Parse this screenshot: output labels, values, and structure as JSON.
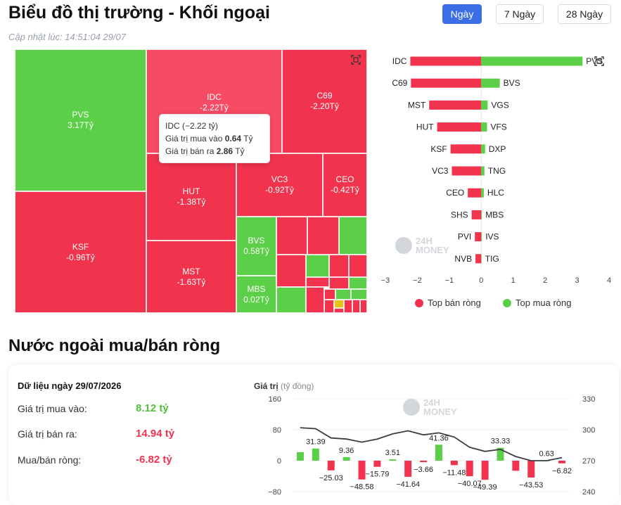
{
  "header": {
    "title": "Biểu đồ thị trường - Khối ngoại",
    "updated": "Cập nhật lúc: 14:51:04 29/07",
    "timeframes": [
      "Ngày",
      "7 Ngày",
      "28 Ngày"
    ],
    "active_timeframe": "Ngày"
  },
  "treemap": {
    "tiles": [
      {
        "code": "PVS",
        "value": "3.17Tỷ",
        "color": "green"
      },
      {
        "code": "IDC",
        "value": "-2.22Tỷ",
        "color": "red-highlight"
      },
      {
        "code": "C69",
        "value": "-2.20Tỷ",
        "color": "red"
      },
      {
        "code": "KSF",
        "value": "-0.96Tỷ",
        "color": "red"
      },
      {
        "code": "HUT",
        "value": "-1.38Tỷ",
        "color": "red"
      },
      {
        "code": "VC3",
        "value": "-0.92Tỷ",
        "color": "red"
      },
      {
        "code": "CEO",
        "value": "-0.42Tỷ",
        "color": "red"
      },
      {
        "code": "BVS",
        "value": "0.58Tỷ",
        "color": "green"
      },
      {
        "code": "MST",
        "value": "-1.63Tỷ",
        "color": "red"
      },
      {
        "code": "MBS",
        "value": "0.02Tỷ",
        "color": "green"
      }
    ],
    "tooltip": {
      "title": "IDC (−2.22 tỷ)",
      "buy_label": "Giá trị mua vào",
      "buy_value": "0.64",
      "sell_label": "Giá trị bán ra",
      "sell_value": "2.86",
      "unit": "Tỷ"
    }
  },
  "top_chart": {
    "legend_sell": "Top bán ròng",
    "legend_buy": "Top mua ròng",
    "colors": {
      "sell": "#f2334e",
      "buy": "#5ccf48"
    }
  },
  "brand": {
    "line1": "24H",
    "line2": "MONEY"
  },
  "section2": {
    "title": "Nước ngoài mua/bán ròng",
    "summary_title": "Dữ liệu ngày 29/07/2026",
    "buy_label": "Giá trị mua vào:",
    "buy_value": "8.12 tỷ",
    "sell_label": "Giá trị bán ra:",
    "sell_value": "14.94 tỷ",
    "net_label": "Mua/bán ròng:",
    "net_value": "-6.82 tỷ",
    "y_title": "Giá trị",
    "y_unit": "(tỷ đồng)"
  },
  "chart_data": [
    {
      "type": "bar",
      "orientation": "horizontal",
      "series": [
        {
          "name": "Top bán ròng",
          "categories": [
            "IDC",
            "C69",
            "MST",
            "HUT",
            "KSF",
            "VC3",
            "CEO",
            "SHS",
            "PVI",
            "NVB"
          ],
          "values": [
            -2.22,
            -2.2,
            -1.63,
            -1.38,
            -0.96,
            -0.92,
            -0.42,
            -0.3,
            -0.2,
            -0.18
          ]
        },
        {
          "name": "Top mua ròng",
          "categories": [
            "PVS",
            "BVS",
            "VGS",
            "VFS",
            "DXP",
            "TNG",
            "HLC",
            "MBS",
            "IVS",
            "TIG"
          ],
          "values": [
            3.17,
            0.58,
            0.2,
            0.18,
            0.12,
            0.1,
            0.08,
            0.02,
            0.02,
            0.01
          ]
        }
      ],
      "xlim": [
        -3,
        4
      ],
      "xticks": [
        "−3",
        "−2",
        "−1",
        "0",
        "1",
        "2",
        "3",
        "4"
      ],
      "legend": "bottom"
    },
    {
      "type": "bar+line",
      "bars": [
        22,
        31.39,
        -25.03,
        9.36,
        -48.58,
        -15.79,
        3.51,
        -41.64,
        -3.66,
        41.36,
        -11.48,
        -40.07,
        -49.39,
        33.33,
        -26,
        -43.53,
        0.63,
        -6.82
      ],
      "bar_labels": [
        "",
        "31.39",
        "−25.03",
        "9.36",
        "−48.58",
        "−15.79",
        "3.51",
        "−41.64",
        "−3.66",
        "41.36",
        "−11.48",
        "−40.07",
        "−49.39",
        "33.33",
        "",
        "−43.53",
        "0.63",
        "−6.82"
      ],
      "line": [
        302,
        301,
        292,
        291,
        288,
        291,
        296,
        299,
        295,
        297,
        293,
        283,
        279,
        281,
        274,
        270,
        270,
        273
      ],
      "ylim_left": [
        -80,
        160
      ],
      "yticks_left": [
        "160",
        "80",
        "0",
        "−80"
      ],
      "ylim_right": [
        240,
        330
      ],
      "yticks_right": [
        "330",
        "300",
        "270",
        "240"
      ]
    }
  ]
}
